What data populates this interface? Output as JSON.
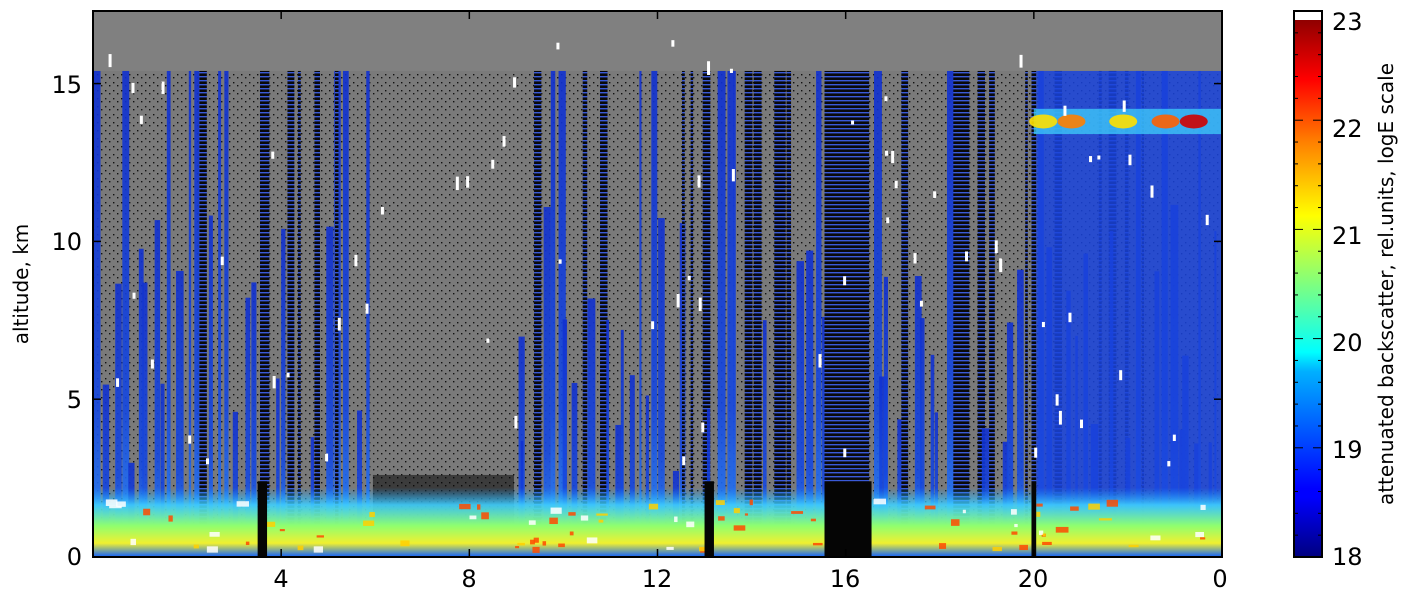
{
  "chart_data": [
    {
      "type": "heatmap",
      "title": "",
      "ylabel": "altitude, km",
      "xlabel": "",
      "x_ticks": [
        "4",
        "8",
        "12",
        "16",
        "20",
        "0"
      ],
      "x_tick_values": [
        4,
        8,
        12,
        16,
        20,
        24
      ],
      "y_ticks": [
        "0",
        "5",
        "10",
        "15"
      ],
      "y_tick_values": [
        0,
        5,
        10,
        15
      ],
      "xlim": [
        0,
        24
      ],
      "ylim": [
        0,
        17.3
      ],
      "colormap": "jet",
      "no_data_color": "#808080",
      "data_rows_max_km": 15.4,
      "boundary_layer_top_km": 2.2,
      "cirrus_layer_km": [
        13.4,
        14.2
      ],
      "cirrus_layer_hours": [
        20.0,
        24.0
      ],
      "gaps_hours": [
        [
          3.55,
          3.75
        ],
        [
          5.95,
          8.95
        ],
        [
          15.55,
          16.5
        ],
        [
          19.95,
          20.05
        ]
      ]
    },
    {
      "type": "colorbar",
      "label": "attenuated backscatter, rel.units, logE scale",
      "ticks": [
        "18",
        "19",
        "20",
        "21",
        "22",
        "23"
      ],
      "tick_values": [
        18,
        19,
        20,
        21,
        22,
        23
      ],
      "range": [
        18,
        23
      ],
      "colormap": "jet"
    }
  ]
}
